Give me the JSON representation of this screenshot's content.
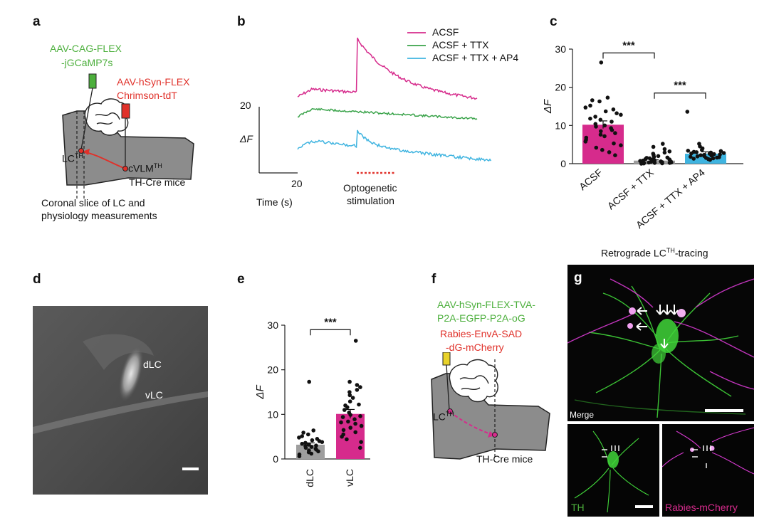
{
  "panels": {
    "a": "a",
    "b": "b",
    "c": "c",
    "d": "d",
    "e": "e",
    "f": "f",
    "g": "g"
  },
  "panel_a": {
    "virus1_line1": "AAV-CAG-FLEX",
    "virus1_line2": "-jGCaMP7s",
    "virus2_line1": "AAV-hSyn-FLEX",
    "virus2_line2": "Chrimson-tdT",
    "lc_label": "LC",
    "lc_sup": "TH",
    "cvlm_label": "cVLM",
    "cvlm_sup": "TH",
    "mice_label": "TH-Cre mice",
    "caption_line1": "Coronal slice of LC and",
    "caption_line2": "physiology measurements",
    "colors": {
      "green": "#4caf3c",
      "red": "#e0312a",
      "tissue": "#8c8c8c"
    }
  },
  "panel_b": {
    "legend": [
      "ACSF",
      "ACSF + TTX",
      "ACSF + TTX + AP4"
    ],
    "legend_colors": [
      "#d62b8c",
      "#3aa34a",
      "#3fb4e0"
    ],
    "scale_y": "20",
    "ylabel": "ΔF",
    "scale_x": "20",
    "xlabel": "Time (s)",
    "stim_line1": "Optogenetic",
    "stim_line2": "stimulation",
    "stim_color": "#e0312a"
  },
  "panel_c": {
    "ylabel": "ΔF",
    "sig1": "***",
    "sig2": "***"
  },
  "panel_d": {
    "dlc": "dLC",
    "vlc": "vLC"
  },
  "panel_e": {
    "ylabel": "ΔF",
    "sig": "***"
  },
  "panel_f": {
    "virus1_line1": "AAV-hSyn-FLEX-TVA-",
    "virus1_line2": "P2A-EGFP-P2A-oG",
    "virus2_line1": "Rabies-EnvA-SAD",
    "virus2_line2": "-dG-mCherry",
    "lc_label": "LC",
    "lc_sup": "TH",
    "mice_label": "TH-Cre mice"
  },
  "panel_g": {
    "title_pre": "Retrograde LC",
    "title_sup": "TH",
    "title_post": "-tracing",
    "merge": "Merge",
    "th": "TH",
    "rabies": "Rabies-mCherry",
    "colors": {
      "green": "#41d63a",
      "magenta": "#d63ad0"
    }
  },
  "chart_data": [
    {
      "panel": "c",
      "type": "bar",
      "categories": [
        "ACSF",
        "ACSF + TTX",
        "ACSF + TTX + AP4"
      ],
      "values": [
        10.2,
        0.8,
        2.6
      ],
      "errors": [
        1.0,
        0.2,
        0.5
      ],
      "colors": [
        "#d62b8c",
        "#9e9e9e",
        "#3fb4e0"
      ],
      "ylabel": "ΔF",
      "ylim": [
        0,
        30
      ],
      "yticks": [
        0,
        10,
        20,
        30
      ],
      "points": [
        [
          26.5,
          17.3,
          16.6,
          16.3,
          15.2,
          14.7,
          14.2,
          13.7,
          13.2,
          12.8,
          12.3,
          11.8,
          11.5,
          11.0,
          10.4,
          10.0,
          9.7,
          9.3,
          8.8,
          8.5,
          8.0,
          7.6,
          7.2,
          6.8,
          6.3,
          5.8,
          5.3,
          4.8,
          4.2,
          3.6,
          3.0,
          2.2
        ],
        [
          5.2,
          4.4,
          3.8,
          3.2,
          2.9,
          2.6,
          2.3,
          2.0,
          1.8,
          1.6,
          1.4,
          1.2,
          1.0,
          0.9,
          0.8,
          0.6,
          0.5,
          0.4,
          0.3,
          0.2,
          0.15,
          0.1,
          0.05,
          0.0,
          0.3,
          0.6,
          1.1,
          1.5,
          0.7,
          0.2
        ],
        [
          13.6,
          5.2,
          4.5,
          4.0,
          3.6,
          3.3,
          3.1,
          2.9,
          2.7,
          2.5,
          2.3,
          2.2,
          2.0,
          1.9,
          1.8,
          1.6,
          1.5,
          1.4,
          1.3,
          1.2,
          1.0,
          2.8,
          2.4,
          3.0,
          2.1,
          1.7,
          3.4,
          2.6
        ]
      ],
      "significance": [
        {
          "pair": [
            0,
            1
          ],
          "label": "***"
        },
        {
          "pair": [
            1,
            2
          ],
          "label": "***"
        }
      ]
    },
    {
      "panel": "e",
      "type": "bar",
      "categories": [
        "dLC",
        "vLC"
      ],
      "values": [
        3.2,
        10.1
      ],
      "errors": [
        0.4,
        1.0
      ],
      "colors": [
        "#9e9e9e",
        "#d62b8c"
      ],
      "ylabel": "ΔF",
      "ylim": [
        0,
        30
      ],
      "yticks": [
        0,
        10,
        20,
        30
      ],
      "points": [
        [
          17.3,
          6.4,
          5.9,
          5.5,
          5.1,
          4.8,
          4.5,
          4.2,
          4.0,
          3.8,
          3.6,
          3.4,
          3.2,
          3.0,
          2.9,
          2.7,
          2.5,
          2.3,
          2.1,
          1.9,
          1.7,
          1.5,
          1.2,
          1.0,
          0.6
        ],
        [
          26.5,
          17.3,
          16.6,
          16.1,
          15.5,
          15.0,
          14.3,
          13.7,
          12.9,
          12.2,
          11.6,
          11.0,
          10.4,
          9.9,
          9.4,
          8.9,
          8.4,
          7.9,
          7.4,
          7.0,
          6.5,
          6.0,
          5.5,
          5.0,
          4.4,
          3.8,
          2.5,
          12.0,
          8.2,
          9.6
        ]
      ],
      "significance": [
        {
          "pair": [
            0,
            1
          ],
          "label": "***"
        }
      ]
    }
  ]
}
